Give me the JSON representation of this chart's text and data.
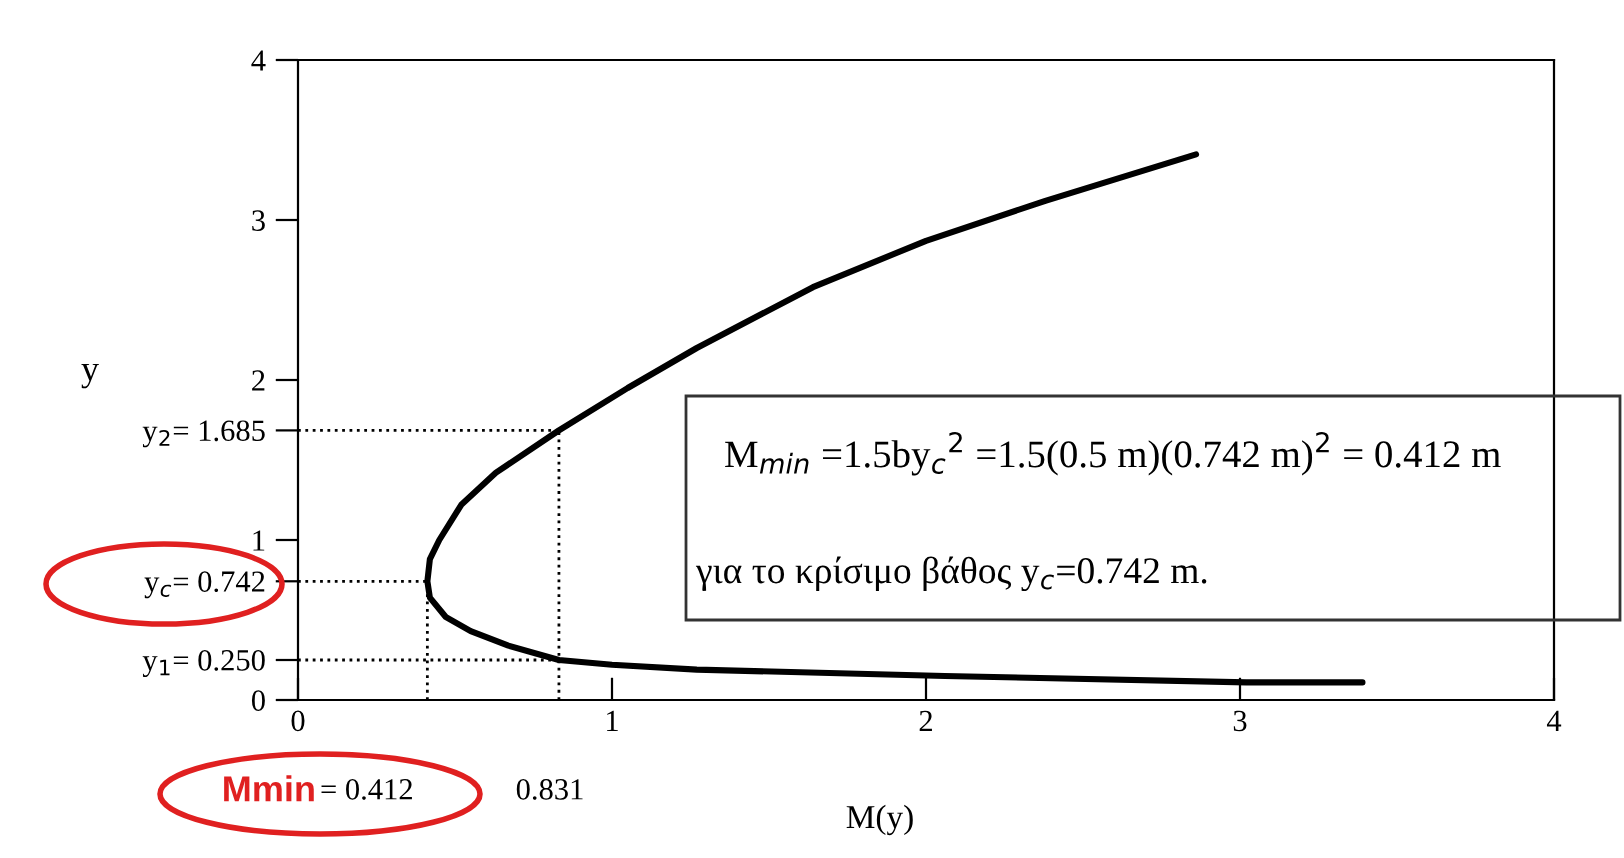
{
  "chart_data": {
    "type": "line",
    "xlabel": "M(y)",
    "ylabel": "y",
    "xlim": [
      0,
      4
    ],
    "ylim": [
      0,
      4
    ],
    "xticks": [
      0,
      1,
      2,
      3,
      4
    ],
    "yticks": [
      0,
      1,
      2,
      3,
      4,
      {
        "value": 1.685,
        "label": "y$_{2}$= 1.685"
      },
      {
        "value": 0.742,
        "label": "y$_{c}$= 0.742"
      },
      {
        "value": 0.25,
        "label": "y$_{1}$= 0.250"
      }
    ],
    "series": [
      {
        "color": "#000000",
        "line_style": "solid",
        "x": [
          3.39,
          3.02,
          2.06,
          1.27,
          1.0,
          0.831,
          0.67,
          0.55,
          0.47,
          0.42,
          0.412,
          0.42,
          0.45,
          0.52,
          0.63,
          0.831,
          1.05,
          1.27,
          1.64,
          2.0,
          2.38,
          2.86
        ],
        "values": [
          0.11,
          0.11,
          0.15,
          0.19,
          0.22,
          0.25,
          0.34,
          0.43,
          0.52,
          0.64,
          0.742,
          0.88,
          1.0,
          1.22,
          1.42,
          1.685,
          1.95,
          2.2,
          2.58,
          2.87,
          3.12,
          3.41
        ]
      },
      {
        "color": "#000000",
        "line_style": "dotted",
        "x": [
          0,
          0.831
        ],
        "values": [
          1.685,
          1.685
        ]
      },
      {
        "color": "#000000",
        "line_style": "dotted",
        "x": [
          0,
          0.412
        ],
        "values": [
          0.742,
          0.742
        ]
      },
      {
        "color": "#000000",
        "line_style": "dotted",
        "x": [
          0,
          0.831
        ],
        "values": [
          0.25,
          0.25
        ]
      },
      {
        "color": "#000000",
        "line_style": "dotted",
        "x": [
          0.412,
          0.412
        ],
        "values": [
          0,
          0.742
        ]
      },
      {
        "color": "#000000",
        "line_style": "dotted",
        "x": [
          0.831,
          0.831
        ],
        "values": [
          0,
          1.685
        ]
      }
    ],
    "annotations": [
      "Mmin",
      "= 0.412",
      "0.831",
      "M$_{min}$ =1.5by$_{c}$$^{2}$ =1.5(0.5 m)(0.742 m)$^{2}$ = 0.412 m",
      "για το κρίσιμο βάθος y$_{c}$=0.742 m."
    ]
  }
}
